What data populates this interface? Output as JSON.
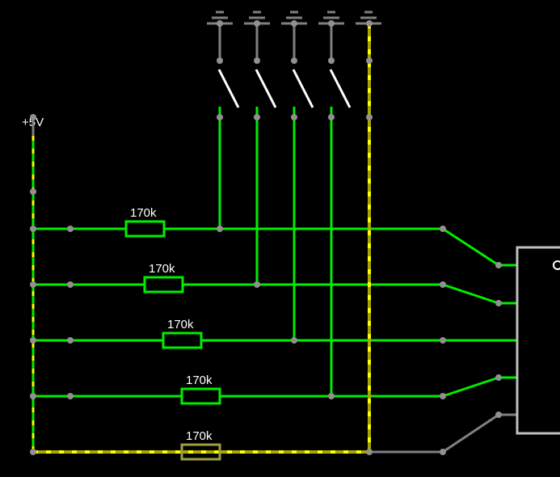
{
  "supply": {
    "label": "+5V"
  },
  "resistors": [
    {
      "label": "170k"
    },
    {
      "label": "170k"
    },
    {
      "label": "170k"
    },
    {
      "label": "170k"
    },
    {
      "label": "170k"
    }
  ],
  "switches": [
    {
      "state": "open"
    },
    {
      "state": "open"
    },
    {
      "state": "open"
    },
    {
      "state": "open"
    },
    {
      "state": "closed"
    }
  ],
  "colors": {
    "background": "#000000",
    "wire_active": "#00ee00",
    "wire_current_dot": "#ffff00",
    "wire_inactive": "#808080",
    "chip_outline": "#c0c0c0",
    "switch_blade": "#ffffff",
    "node": "#909090"
  }
}
